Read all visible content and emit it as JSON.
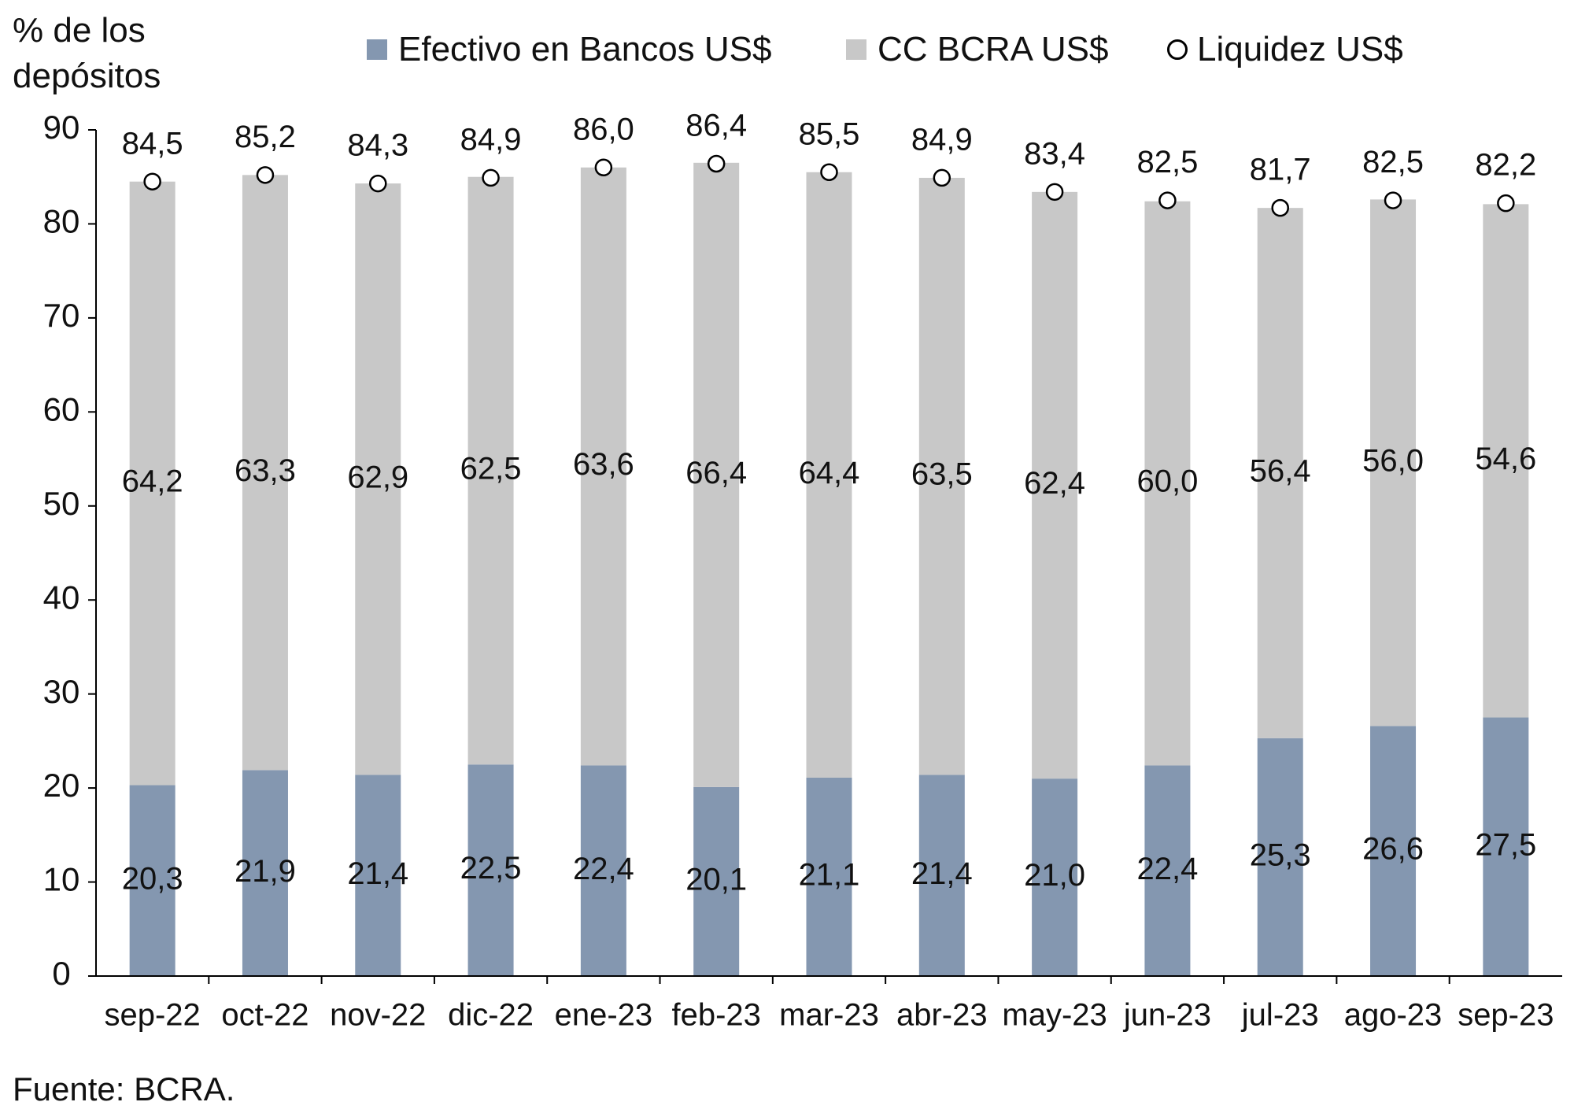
{
  "y_axis_title": [
    "% de los",
    "depósitos"
  ],
  "source": "Fuente: BCRA.",
  "legend": {
    "efectivo": "Efectivo en Bancos US$",
    "cc": "CC BCRA US$",
    "liquidez": "Liquidez US$"
  },
  "colors": {
    "efectivo": "#8497b0",
    "cc": "#c8c8c8",
    "liquidez_fill": "#ffffff",
    "liquidez_stroke": "#000000"
  },
  "chart_data": {
    "type": "bar",
    "stacked": true,
    "categories": [
      "sep-22",
      "oct-22",
      "nov-22",
      "dic-22",
      "ene-23",
      "feb-23",
      "mar-23",
      "abr-23",
      "may-23",
      "jun-23",
      "jul-23",
      "ago-23",
      "sep-23"
    ],
    "series": [
      {
        "name": "Efectivo en Bancos US$",
        "type": "bar",
        "values": [
          20.3,
          21.9,
          21.4,
          22.5,
          22.4,
          20.1,
          21.1,
          21.4,
          21.0,
          22.4,
          25.3,
          26.6,
          27.5
        ],
        "labels": [
          "20,3",
          "21,9",
          "21,4",
          "22,5",
          "22,4",
          "20,1",
          "21,1",
          "21,4",
          "21,0",
          "22,4",
          "25,3",
          "26,6",
          "27,5"
        ]
      },
      {
        "name": "CC BCRA US$",
        "type": "bar",
        "values": [
          64.2,
          63.3,
          62.9,
          62.5,
          63.6,
          66.4,
          64.4,
          63.5,
          62.4,
          60.0,
          56.4,
          56.0,
          54.6
        ],
        "labels": [
          "64,2",
          "63,3",
          "62,9",
          "62,5",
          "63,6",
          "66,4",
          "64,4",
          "63,5",
          "62,4",
          "60,0",
          "56,4",
          "56,0",
          "54,6"
        ]
      },
      {
        "name": "Liquidez US$",
        "type": "marker",
        "values": [
          84.5,
          85.2,
          84.3,
          84.9,
          86.0,
          86.4,
          85.5,
          84.9,
          83.4,
          82.5,
          81.7,
          82.5,
          82.2
        ],
        "labels": [
          "84,5",
          "85,2",
          "84,3",
          "84,9",
          "86,0",
          "86,4",
          "85,5",
          "84,9",
          "83,4",
          "82,5",
          "81,7",
          "82,5",
          "82,2"
        ]
      }
    ],
    "ylabel": "% de los depósitos",
    "ylim": [
      0,
      90
    ],
    "yticks": [
      0,
      10,
      20,
      30,
      40,
      50,
      60,
      70,
      80,
      90
    ],
    "grid": false,
    "legend_position": "top"
  }
}
